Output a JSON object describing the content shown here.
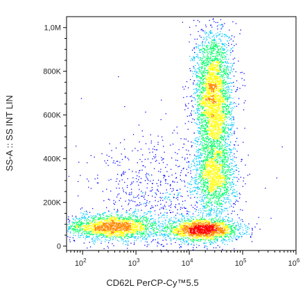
{
  "chart_data": {
    "type": "scatter",
    "subtype": "flow-cytometry-density-dot-plot",
    "title": "",
    "xlabel": "CD62L PerCP-Cy™5.5",
    "ylabel": "SS-A :: SS INT LIN",
    "x_scale": "log",
    "y_scale": "linear",
    "xlim": [
      50,
      1000000
    ],
    "ylim": [
      -20000,
      1050000
    ],
    "x_ticks": [
      {
        "value": 100,
        "base": "10",
        "exp": "2"
      },
      {
        "value": 1000,
        "base": "10",
        "exp": "3"
      },
      {
        "value": 10000,
        "base": "10",
        "exp": "4"
      },
      {
        "value": 100000,
        "base": "10",
        "exp": "5"
      },
      {
        "value": 1000000,
        "base": "10",
        "exp": "6"
      }
    ],
    "y_ticks": [
      {
        "value": 0,
        "label": "0"
      },
      {
        "value": 200000,
        "label": "200K"
      },
      {
        "value": 400000,
        "label": "400K"
      },
      {
        "value": 600000,
        "label": "600K"
      },
      {
        "value": 800000,
        "label": "800K"
      },
      {
        "value": 1000000,
        "label": "1,0M"
      }
    ],
    "grid": false,
    "legend": "none",
    "color_scale": [
      "#0000ff",
      "#00c8ff",
      "#00ff66",
      "#ffff00",
      "#ff8800",
      "#ff0000"
    ],
    "populations": [
      {
        "x_center": 350,
        "y_center": 90000,
        "x_spread_log": 0.45,
        "y_spread": 28000,
        "weight": 0.2
      },
      {
        "x_center": 18000,
        "y_center": 75000,
        "x_spread_log": 0.35,
        "y_spread": 25000,
        "weight": 0.2
      },
      {
        "x_center": 28000,
        "y_center": 680000,
        "x_spread_log": 0.18,
        "y_spread": 160000,
        "weight": 0.35
      },
      {
        "x_center": 30000,
        "y_center": 320000,
        "x_spread_log": 0.2,
        "y_spread": 90000,
        "weight": 0.15
      },
      {
        "x_center": 3000,
        "y_center": 200000,
        "x_spread_log": 0.7,
        "y_spread": 150000,
        "weight": 0.1
      }
    ]
  }
}
